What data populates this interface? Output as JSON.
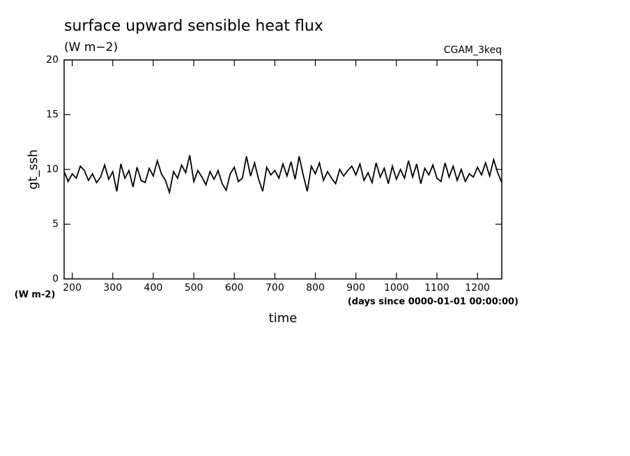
{
  "chart_data": {
    "type": "line",
    "title": "surface upward sensible heat flux",
    "subtitle": "(W m−2)",
    "annotation": "CGAM_3keq",
    "y_label": "gt_ssh",
    "y_units": "(W m-2)",
    "x_label": "time",
    "x_units": "(days since 0000-01-01 00:00:00)",
    "color": "#000000",
    "xlim": [
      180,
      1260
    ],
    "ylim": [
      0,
      20
    ],
    "xticks": [
      200,
      300,
      400,
      500,
      600,
      700,
      800,
      900,
      1000,
      1100,
      1200
    ],
    "yticks": [
      0,
      5,
      10,
      15,
      20
    ],
    "x": [
      180,
      190,
      200,
      210,
      220,
      230,
      240,
      250,
      260,
      270,
      280,
      290,
      300,
      310,
      320,
      330,
      340,
      350,
      360,
      370,
      380,
      390,
      400,
      410,
      420,
      430,
      440,
      450,
      460,
      470,
      480,
      490,
      500,
      510,
      520,
      530,
      540,
      550,
      560,
      570,
      580,
      590,
      600,
      610,
      620,
      630,
      640,
      650,
      660,
      670,
      680,
      690,
      700,
      710,
      720,
      730,
      740,
      750,
      760,
      770,
      780,
      790,
      800,
      810,
      820,
      830,
      840,
      850,
      860,
      870,
      880,
      890,
      900,
      910,
      920,
      930,
      940,
      950,
      960,
      970,
      980,
      990,
      1000,
      1010,
      1020,
      1030,
      1040,
      1050,
      1060,
      1070,
      1080,
      1090,
      1100,
      1110,
      1120,
      1130,
      1140,
      1150,
      1160,
      1170,
      1180,
      1190,
      1200,
      1210,
      1220,
      1230,
      1240,
      1250,
      1260
    ],
    "values": [
      9.8,
      8.9,
      9.6,
      9.2,
      10.3,
      9.9,
      9.0,
      9.6,
      8.8,
      9.3,
      10.4,
      9.1,
      9.8,
      8.0,
      10.5,
      9.2,
      9.9,
      8.4,
      10.2,
      9.0,
      8.8,
      10.1,
      9.4,
      10.8,
      9.6,
      9.0,
      7.9,
      9.8,
      9.2,
      10.4,
      9.7,
      11.3,
      8.9,
      9.9,
      9.3,
      8.6,
      9.8,
      9.1,
      9.9,
      8.7,
      8.1,
      9.6,
      10.2,
      8.9,
      9.2,
      11.2,
      9.4,
      10.6,
      9.1,
      8.0,
      10.2,
      9.5,
      9.9,
      9.2,
      10.5,
      9.4,
      10.7,
      9.1,
      11.2,
      9.5,
      8.0,
      10.3,
      9.6,
      10.6,
      9.0,
      9.8,
      9.2,
      8.7,
      10.0,
      9.4,
      9.9,
      10.3,
      9.5,
      10.5,
      9.0,
      9.7,
      8.8,
      10.6,
      9.3,
      10.1,
      8.7,
      10.3,
      9.1,
      10.0,
      9.2,
      10.8,
      9.3,
      10.5,
      8.7,
      10.1,
      9.5,
      10.4,
      9.2,
      8.9,
      10.6,
      9.3,
      10.3,
      9.0,
      10.0,
      8.9,
      9.6,
      9.3,
      10.2,
      9.5,
      10.6,
      9.4,
      10.9,
      9.7,
      8.8
    ]
  }
}
